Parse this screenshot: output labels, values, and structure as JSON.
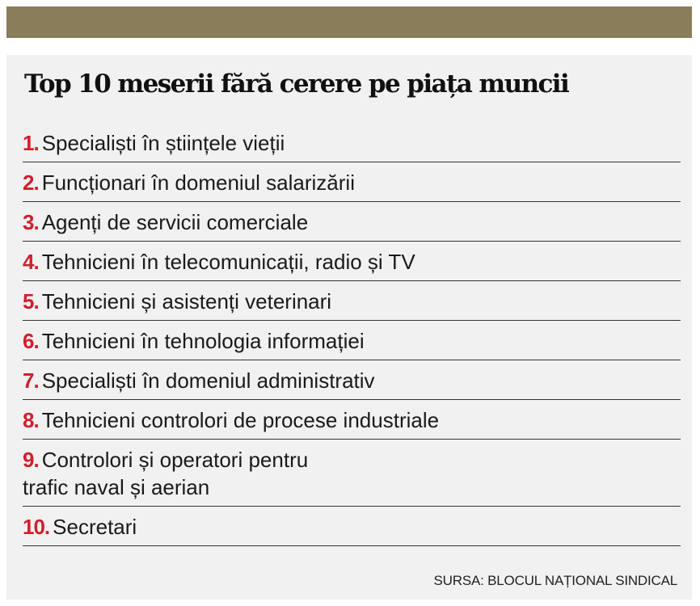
{
  "title": "Top 10 meserii fără cerere pe piața muncii",
  "items": [
    {
      "number": "1.",
      "text": "Specialiști în științele vieții"
    },
    {
      "number": "2.",
      "text": "Funcționari în domeniul salarizării"
    },
    {
      "number": "3.",
      "text": "Agenți de servicii comerciale"
    },
    {
      "number": "4.",
      "text": "Tehnicieni în telecomunicații, radio și TV"
    },
    {
      "number": "5.",
      "text": "Tehnicieni și asistenți veterinari"
    },
    {
      "number": "6.",
      "text": "Tehnicieni în tehnologia informației"
    },
    {
      "number": "7.",
      "text": "Specialiști în domeniul administrativ"
    },
    {
      "number": "8.",
      "text": "Tehnicieni controlori de procese industriale"
    },
    {
      "number": "9.",
      "text": "Controlori și operatori pentru\ntrafic naval și aerian"
    },
    {
      "number": "10.",
      "text": "Secretari"
    }
  ],
  "source": "SURSA: BLOCUL NAȚIONAL SINDICAL"
}
